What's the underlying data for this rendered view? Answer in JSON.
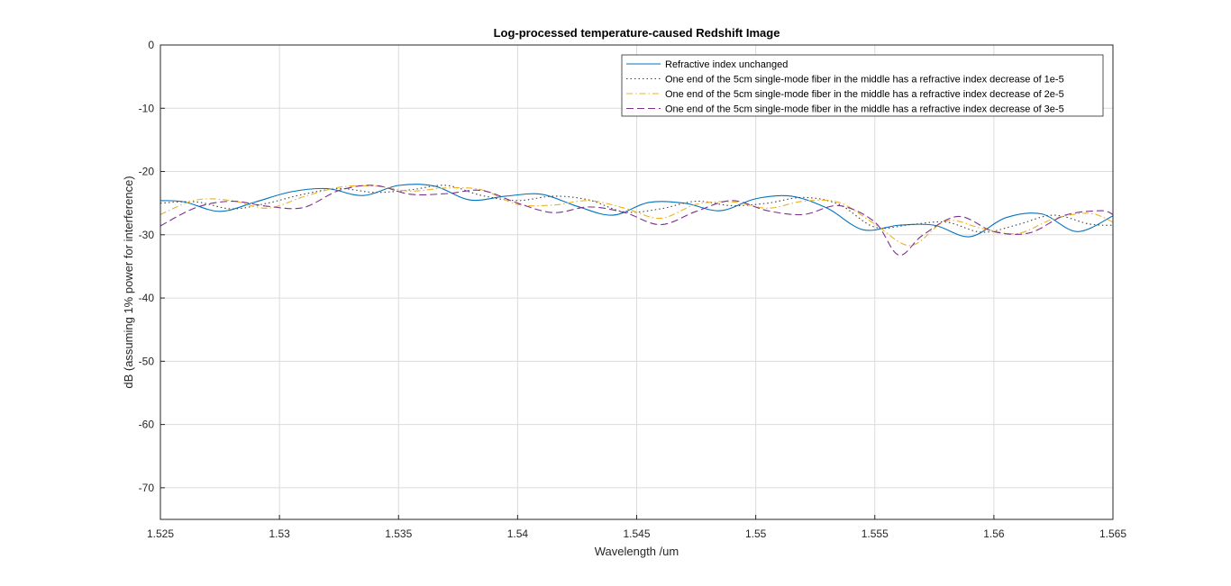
{
  "chart_data": {
    "type": "line",
    "title": "Log-processed temperature-caused Redshift Image",
    "xlabel": "Wavelength /um",
    "ylabel": "dB (assuming 1% power for interference)",
    "xlim": [
      1.525,
      1.565
    ],
    "ylim": [
      -75,
      0
    ],
    "xticks": [
      1.525,
      1.53,
      1.535,
      1.54,
      1.545,
      1.55,
      1.555,
      1.56,
      1.565
    ],
    "xtick_labels": [
      "1.525",
      "1.53",
      "1.535",
      "1.54",
      "1.545",
      "1.55",
      "1.555",
      "1.56",
      "1.565"
    ],
    "yticks": [
      0,
      -10,
      -20,
      -30,
      -40,
      -50,
      -60,
      -70
    ],
    "ytick_labels": [
      "0",
      "-10",
      "-20",
      "-30",
      "-40",
      "-50",
      "-60",
      "-70"
    ],
    "grid": true,
    "legend_position": "top-right",
    "series": [
      {
        "name": "Refractive index unchanged",
        "color": "#0072BD",
        "linestyle": "solid",
        "x": [
          1.525,
          1.526,
          1.5275,
          1.529,
          1.5305,
          1.532,
          1.5335,
          1.535,
          1.5365,
          1.538,
          1.5395,
          1.541,
          1.5425,
          1.544,
          1.5455,
          1.547,
          1.5485,
          1.55,
          1.5515,
          1.553,
          1.5545,
          1.556,
          1.5575,
          1.559,
          1.5605,
          1.562,
          1.5635,
          1.565
        ],
        "y": [
          -24.6,
          -24.8,
          -26.3,
          -24.8,
          -23.2,
          -22.7,
          -23.8,
          -22.2,
          -22.3,
          -24.5,
          -23.9,
          -23.6,
          -25.5,
          -26.9,
          -24.9,
          -25.0,
          -26.2,
          -24.3,
          -23.9,
          -25.8,
          -29.2,
          -28.5,
          -28.5,
          -30.3,
          -27.3,
          -26.7,
          -29.5,
          -27.0
        ]
      },
      {
        "name": "One end of the 5cm single-mode fiber in the middle has a refractive index decrease of 1e-5",
        "color": "#404040",
        "linestyle": "dotted",
        "x": [
          1.525,
          1.5265,
          1.528,
          1.5295,
          1.531,
          1.5325,
          1.534,
          1.5355,
          1.537,
          1.5385,
          1.54,
          1.5415,
          1.543,
          1.5445,
          1.546,
          1.5475,
          1.549,
          1.5505,
          1.552,
          1.5535,
          1.555,
          1.5565,
          1.558,
          1.5595,
          1.561,
          1.5625,
          1.564,
          1.565
        ],
        "y": [
          -25.0,
          -24.8,
          -25.9,
          -25.0,
          -23.6,
          -22.7,
          -23.3,
          -22.9,
          -22.2,
          -23.8,
          -24.6,
          -23.9,
          -24.5,
          -26.4,
          -25.9,
          -24.7,
          -25.4,
          -25.0,
          -24.1,
          -25.2,
          -28.8,
          -28.4,
          -28.0,
          -29.6,
          -28.4,
          -26.9,
          -28.3,
          -28.5
        ]
      },
      {
        "name": "One end of the 5cm single-mode fiber in the middle has a refractive index decrease of 2e-5",
        "color": "#EDB120",
        "linestyle": "dashdot",
        "x": [
          1.525,
          1.5265,
          1.528,
          1.5295,
          1.531,
          1.5325,
          1.534,
          1.5355,
          1.537,
          1.5385,
          1.54,
          1.5415,
          1.543,
          1.5445,
          1.546,
          1.5475,
          1.549,
          1.5505,
          1.552,
          1.5535,
          1.555,
          1.5565,
          1.558,
          1.5595,
          1.561,
          1.5625,
          1.564,
          1.565
        ],
        "y": [
          -26.8,
          -24.5,
          -24.6,
          -25.8,
          -24.0,
          -22.5,
          -22.3,
          -23.1,
          -22.6,
          -22.9,
          -25.2,
          -25.3,
          -24.6,
          -25.8,
          -27.4,
          -25.2,
          -24.8,
          -25.8,
          -24.7,
          -24.9,
          -28.3,
          -31.7,
          -27.8,
          -29.0,
          -29.8,
          -27.5,
          -26.6,
          -28.0
        ]
      },
      {
        "name": "One end of the 5cm single-mode fiber in the middle has a refractive index decrease of 3e-5",
        "color": "#7E2F8E",
        "linestyle": "dashed",
        "x": [
          1.525,
          1.5265,
          1.528,
          1.5295,
          1.531,
          1.5325,
          1.534,
          1.5355,
          1.537,
          1.5385,
          1.54,
          1.5415,
          1.543,
          1.5445,
          1.546,
          1.5475,
          1.549,
          1.5505,
          1.552,
          1.5535,
          1.555,
          1.556,
          1.557,
          1.5585,
          1.56,
          1.5615,
          1.563,
          1.5645,
          1.565
        ],
        "y": [
          -28.6,
          -25.7,
          -24.7,
          -25.5,
          -25.7,
          -23.0,
          -22.2,
          -23.6,
          -23.5,
          -23.0,
          -25.0,
          -26.5,
          -25.6,
          -26.5,
          -28.4,
          -26.3,
          -24.6,
          -26.2,
          -26.8,
          -25.4,
          -28.0,
          -33.2,
          -30.1,
          -27.1,
          -29.5,
          -29.7,
          -26.9,
          -26.2,
          -26.8
        ]
      }
    ]
  }
}
